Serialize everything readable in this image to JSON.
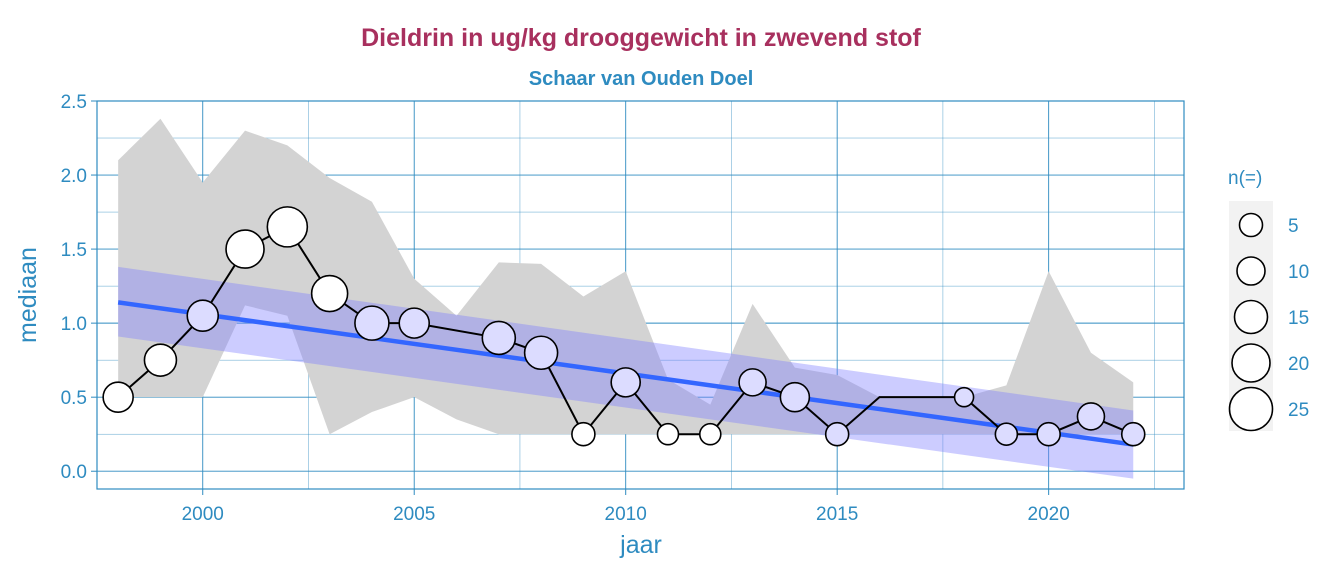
{
  "chart_data": {
    "type": "line",
    "title": "Dieldrin in ug/kg drooggewicht in zwevend stof",
    "subtitle": "Schaar van Ouden Doel",
    "xlabel": "jaar",
    "ylabel": "mediaan",
    "xlim": [
      1997.5,
      2023.2
    ],
    "ylim": [
      -0.12,
      2.5
    ],
    "x_ticks": [
      2000,
      2005,
      2010,
      2015,
      2020
    ],
    "x_tick_labels": [
      "2000",
      "2005",
      "2010",
      "2015",
      "2020"
    ],
    "y_ticks": [
      0.0,
      0.5,
      1.0,
      1.5,
      2.0,
      2.5
    ],
    "y_tick_labels": [
      "0.0",
      "0.5",
      "1.0",
      "1.5",
      "2.0",
      "2.5"
    ],
    "grid": true,
    "colors": {
      "title": "#a8305e",
      "subtitle": "#2e8bc0",
      "axis_text": "#2e8bc0",
      "grid": "#2e8bc0",
      "range_band": "#d3d3d3",
      "trend_line": "#3366ff",
      "trend_band": "#8080ff",
      "point_fill": "#ffffff",
      "point_fill_below_band": "#dcdcff",
      "line": "#000000"
    },
    "series": [
      {
        "type": "line_points",
        "x": [
          1998,
          1999,
          2000,
          2001,
          2002,
          2003,
          2004,
          2005,
          2007,
          2008,
          2009,
          2010,
          2011,
          2012,
          2013,
          2014,
          2015,
          2016,
          2018,
          2019,
          2020,
          2021,
          2022
        ],
        "values": [
          0.5,
          0.75,
          1.05,
          1.5,
          1.65,
          1.2,
          1.0,
          1.0,
          0.9,
          0.8,
          0.25,
          0.6,
          0.25,
          0.25,
          0.6,
          0.5,
          0.25,
          0.5,
          0.5,
          0.25,
          0.25,
          0.37,
          0.25
        ],
        "n": [
          12,
          14,
          13,
          20,
          22,
          18,
          16,
          12,
          15,
          15,
          5,
          11,
          3,
          3,
          9,
          11,
          5,
          0,
          1,
          4,
          5,
          9,
          5
        ]
      }
    ],
    "range_band": {
      "x": [
        1998,
        1999,
        2000,
        2001,
        2002,
        2003,
        2004,
        2005,
        2006,
        2007,
        2008,
        2009,
        2010,
        2011,
        2012,
        2013,
        2014,
        2015,
        2016,
        2017,
        2018,
        2019,
        2020,
        2021,
        2022
      ],
      "upper": [
        2.1,
        2.38,
        1.95,
        2.3,
        2.2,
        1.98,
        1.82,
        1.3,
        1.05,
        1.41,
        1.4,
        1.18,
        1.35,
        0.62,
        0.45,
        1.13,
        0.7,
        0.65,
        0.5,
        0.5,
        0.5,
        0.58,
        1.35,
        0.8,
        0.6
      ],
      "lower": [
        0.5,
        0.5,
        0.5,
        1.12,
        1.05,
        0.25,
        0.4,
        0.5,
        0.35,
        0.25,
        0.25,
        0.25,
        0.25,
        0.25,
        0.25,
        0.25,
        0.25,
        0.25,
        0.25,
        0.25,
        0.25,
        0.25,
        0.25,
        0.25,
        0.25
      ]
    },
    "trend": {
      "x": [
        1998,
        2022
      ],
      "fit": [
        1.14,
        0.18
      ],
      "band_lower": [
        0.91,
        -0.05
      ],
      "band_upper": [
        1.38,
        0.41
      ]
    },
    "legend": {
      "title": "n(=)",
      "position": "right",
      "entries": [
        {
          "label": "5",
          "n": 5
        },
        {
          "label": "10",
          "n": 10
        },
        {
          "label": "15",
          "n": 15
        },
        {
          "label": "20",
          "n": 20
        },
        {
          "label": "25",
          "n": 25
        }
      ]
    }
  }
}
